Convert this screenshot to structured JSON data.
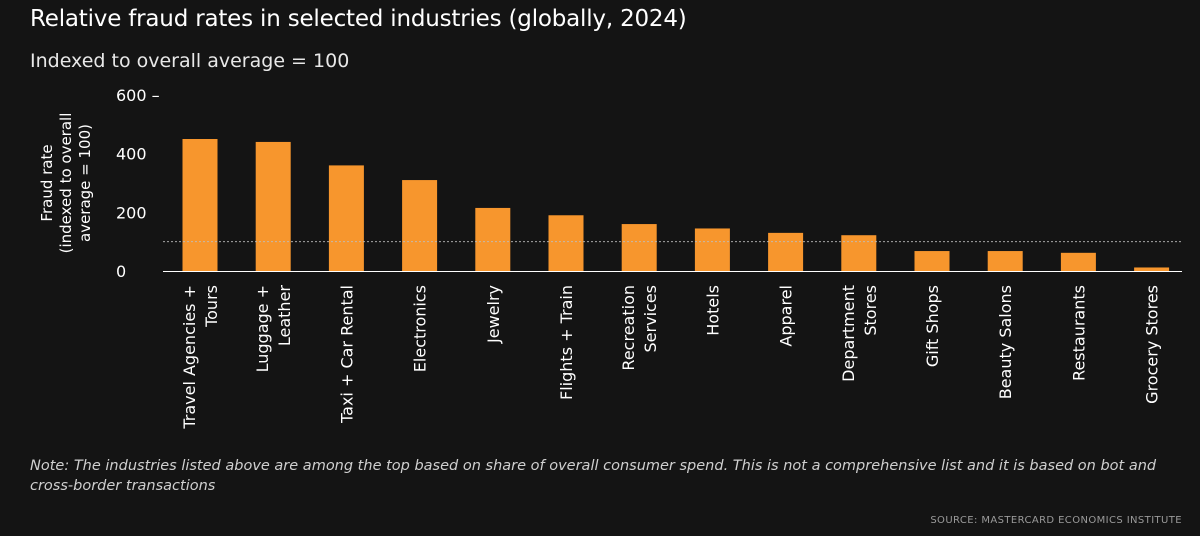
{
  "chart_data": {
    "type": "bar",
    "title": "Relative fraud rates in selected industries (globally, 2024)",
    "subtitle": "Indexed to overall average = 100",
    "ylabel": "Fraud rate (indexed to overall average = 100)",
    "ylabel_lines": [
      "Fraud rate",
      "(indexed to overall",
      "average = 100)"
    ],
    "xlabel": "",
    "ylim": [
      0,
      600
    ],
    "yticks": [
      0,
      200,
      400,
      600
    ],
    "y_tick_labels": [
      "0",
      "200",
      "400",
      "600 –"
    ],
    "reference_line": 100,
    "grid": false,
    "legend": "none",
    "bar_color": "#f7962d",
    "categories": [
      "Travel Agencies + Tours",
      "Luggage + Leather",
      "Taxi + Car Rental",
      "Electronics",
      "Jewelry",
      "Flights + Train",
      "Recreation Services",
      "Hotels",
      "Apparel",
      "Department Stores",
      "Gift Shops",
      "Beauty Salons",
      "Restaurants",
      "Grocery Stores"
    ],
    "category_label_lines": [
      [
        "Travel Agencies +",
        "Tours"
      ],
      [
        "Luggage +",
        "Leather"
      ],
      [
        "Taxi + Car Rental"
      ],
      [
        "Electronics"
      ],
      [
        "Jewelry"
      ],
      [
        "Flights + Train"
      ],
      [
        "Recreation",
        "Services"
      ],
      [
        "Hotels"
      ],
      [
        "Apparel"
      ],
      [
        "Department",
        "Stores"
      ],
      [
        "Gift Shops"
      ],
      [
        "Beauty Salons"
      ],
      [
        "Restaurants"
      ],
      [
        "Grocery Stores"
      ]
    ],
    "values": [
      450,
      440,
      360,
      310,
      215,
      190,
      160,
      145,
      130,
      122,
      68,
      68,
      62,
      12
    ]
  },
  "note": "Note: The industries listed above are among the top based on share of overall consumer spend. This is not a comprehensive list and it is based on bot and cross-border transactions",
  "source": "SOURCE: MASTERCARD ECONOMICS INSTITUTE"
}
